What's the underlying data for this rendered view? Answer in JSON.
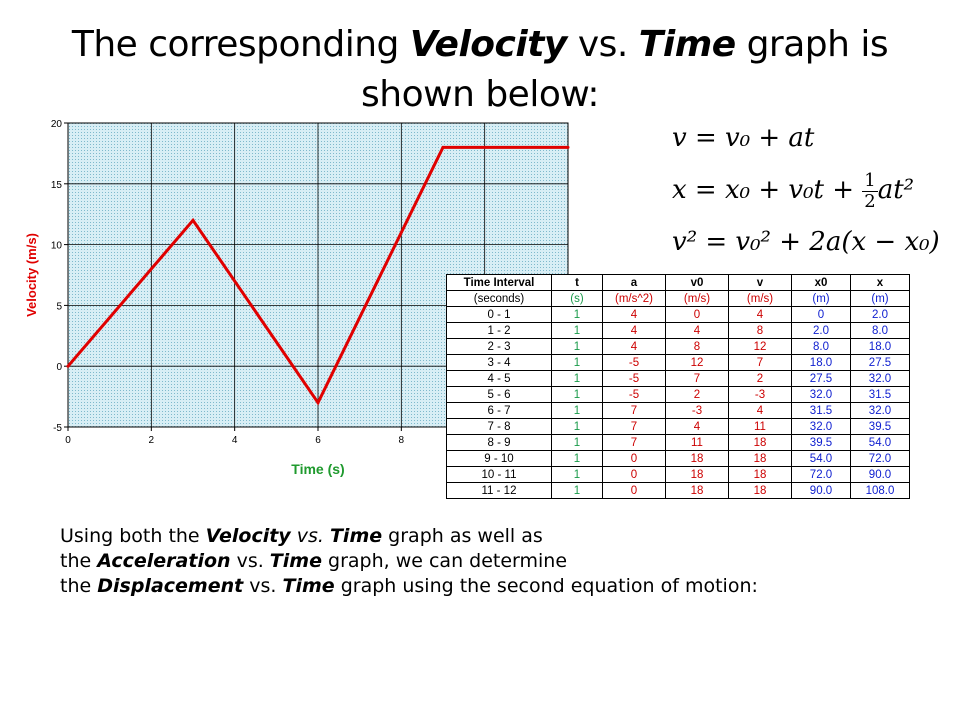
{
  "title": {
    "pre": "The corresponding ",
    "em1": "Velocity",
    "mid": " vs. ",
    "em2": "Time",
    "post": " graph is shown below:"
  },
  "equations": {
    "eq1": "v = v₀ + at",
    "eq2_left": "x = x₀ + v₀t +",
    "eq2_num": "1",
    "eq2_den": "2",
    "eq2_right": "at²",
    "eq3": "v² = v₀² + 2a(x − x₀)"
  },
  "table": {
    "header1": [
      "Time Interval",
      "t",
      "a",
      "v0",
      "v",
      "x0",
      "x"
    ],
    "header2": [
      "(seconds)",
      "(s)",
      "(m/s^2)",
      "(m/s)",
      "(m/s)",
      "(m)",
      "(m)"
    ],
    "rows": [
      [
        "0 - 1",
        "1",
        "4",
        "0",
        "4",
        "0",
        "2.0"
      ],
      [
        "1 - 2",
        "1",
        "4",
        "4",
        "8",
        "2.0",
        "8.0"
      ],
      [
        "2 - 3",
        "1",
        "4",
        "8",
        "12",
        "8.0",
        "18.0"
      ],
      [
        "3 - 4",
        "1",
        "-5",
        "12",
        "7",
        "18.0",
        "27.5"
      ],
      [
        "4 - 5",
        "1",
        "-5",
        "7",
        "2",
        "27.5",
        "32.0"
      ],
      [
        "5 - 6",
        "1",
        "-5",
        "2",
        "-3",
        "32.0",
        "31.5"
      ],
      [
        "6 - 7",
        "1",
        "7",
        "-3",
        "4",
        "31.5",
        "32.0"
      ],
      [
        "7 - 8",
        "1",
        "7",
        "4",
        "11",
        "32.0",
        "39.5"
      ],
      [
        "8 - 9",
        "1",
        "7",
        "11",
        "18",
        "39.5",
        "54.0"
      ],
      [
        "9 - 10",
        "1",
        "0",
        "18",
        "18",
        "54.0",
        "72.0"
      ],
      [
        "10 - 11",
        "1",
        "0",
        "18",
        "18",
        "72.0",
        "90.0"
      ],
      [
        "11 - 12",
        "1",
        "0",
        "18",
        "18",
        "90.0",
        "108.0"
      ]
    ]
  },
  "body": {
    "l1_pre": "Using both the ",
    "l1_em1": "Velocity",
    "l1_i": " vs. ",
    "l1_em2": "Time",
    "l1_post": " graph as well as",
    "l2_pre": "the ",
    "l2_em1": "Acceleration",
    "l2_mid": " vs. ",
    "l2_em2": "Time",
    "l2_post": " graph, we can determine",
    "l3_pre": "the ",
    "l3_em1": "Displacement",
    "l3_mid": "  vs. ",
    "l3_em2": "Time",
    "l3_post": " graph using the second equation of motion:"
  },
  "chart_data": {
    "type": "line",
    "xlabel": "Time (s)",
    "ylabel": "Velocity (m/s)",
    "xlim": [
      0,
      12
    ],
    "ylim": [
      -5,
      20
    ],
    "x_ticks": [
      0,
      2,
      4,
      6,
      8
    ],
    "y_ticks": [
      -5,
      0,
      5,
      10,
      15,
      20
    ],
    "grid": true,
    "series": [
      {
        "x": [
          0,
          3,
          6,
          9,
          12
        ],
        "y": [
          0,
          12,
          -3,
          18,
          18
        ],
        "color": "#e00000"
      }
    ],
    "colors": {
      "plot_bg": "#bfe3ee",
      "line": "#e00000",
      "axis_label": "#e00000",
      "xlabel_color": "#1f9a2e"
    }
  }
}
